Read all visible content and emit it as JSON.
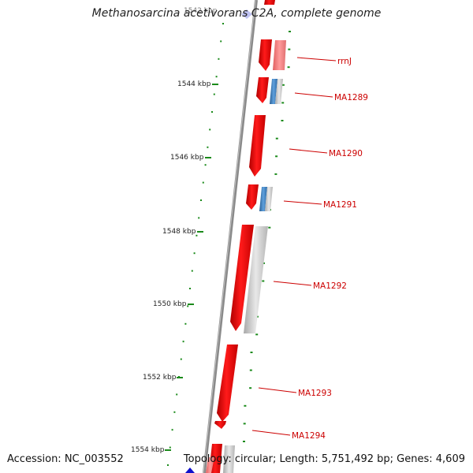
{
  "title": "Methanosarcina acetivorans C2A, complete genome",
  "accession": "Accession: NC_003552",
  "summary": "Topology: circular; Length: 5,751,492 bp; Genes: 4,609",
  "ruler": {
    "top_faded_label": "1542 kbp",
    "ticks": [
      "1544 kbp",
      "1546 kbp",
      "1548 kbp",
      "1550 kbp",
      "1552 kbp",
      "1554 kbp"
    ]
  },
  "genes": [
    {
      "label": "rrnJ"
    },
    {
      "label": "MA1289"
    },
    {
      "label": "MA1290"
    },
    {
      "label": "MA1291"
    },
    {
      "label": "MA1292"
    },
    {
      "label": "MA1293"
    },
    {
      "label": "MA1294"
    }
  ],
  "colors": {
    "cds": "#ee0000",
    "rrna": "#f07878",
    "blast_hit": "#3d7fbd",
    "no_hit": "#c8c8c8",
    "backbone": "#808080",
    "gc_skew_dots": "#1a8a1a",
    "label_line": "#cc0000"
  }
}
